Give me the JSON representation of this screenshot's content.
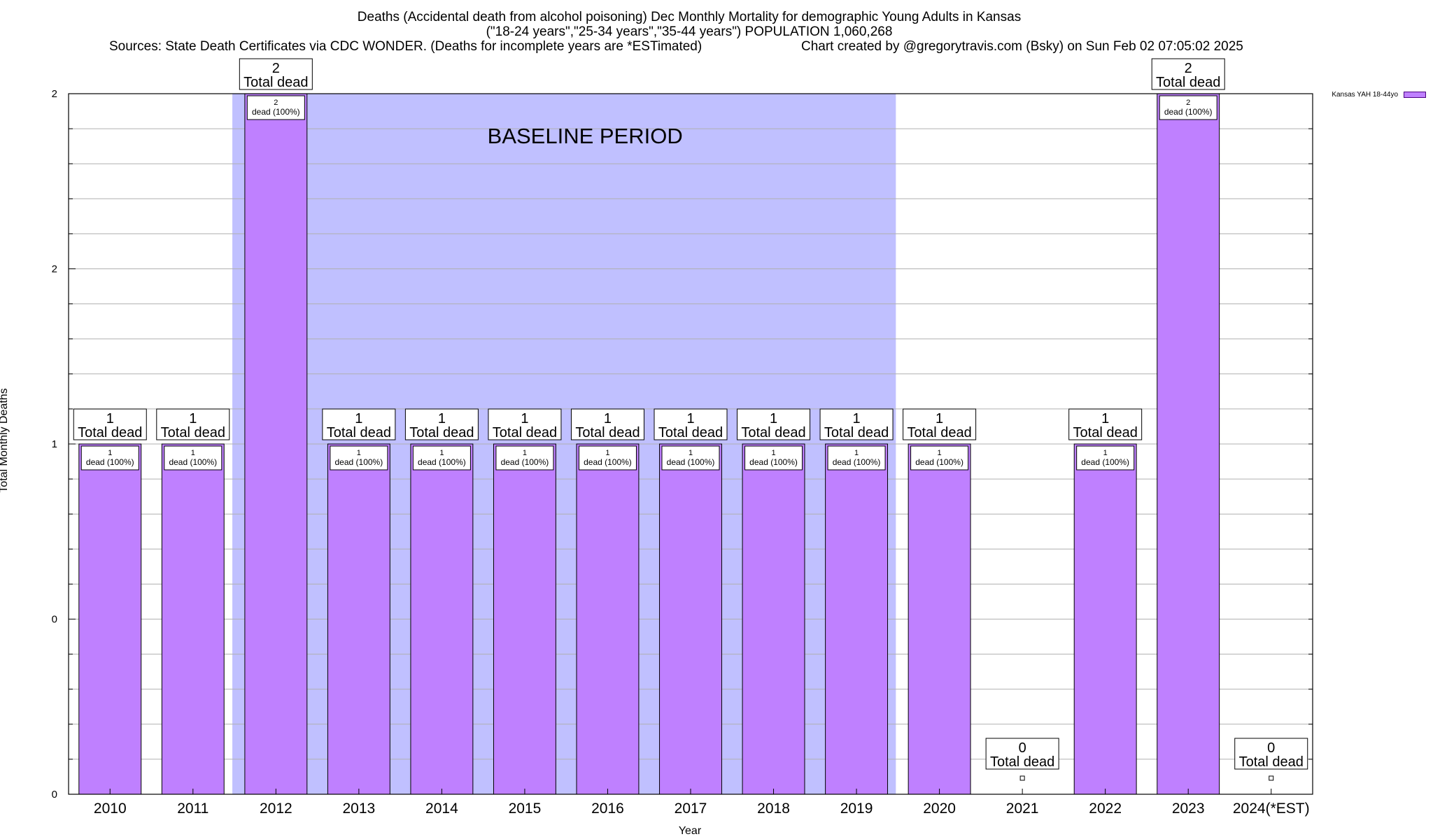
{
  "chart_data": {
    "type": "bar",
    "title": "Deaths (Accidental death from alcohol poisoning) Dec Monthly Mortality for demographic Young Adults in Kansas",
    "subtitle": "(\"18-24 years\",\"25-34 years\",\"35-44 years\") POPULATION 1,060,268",
    "source": "Sources: State Death Certificates via CDC WONDER. (Deaths for incomplete years are *ESTimated)",
    "credit": "Chart created by @gregorytravis.com (Bsky) on Sun Feb 02 07:05:02 2025",
    "xlabel": "Year",
    "ylabel": "Total Monthly Deaths",
    "categories": [
      "2010",
      "2011",
      "2012",
      "2013",
      "2014",
      "2015",
      "2016",
      "2017",
      "2018",
      "2019",
      "2020",
      "2021",
      "2022",
      "2023",
      "2024(*EST)"
    ],
    "series": [
      {
        "name": "Kansas YAH 18-44yo",
        "color": "#bf80ff",
        "values": [
          1,
          1,
          2,
          1,
          1,
          1,
          1,
          1,
          1,
          1,
          1,
          0,
          1,
          2,
          0
        ]
      }
    ],
    "bar_inner_labels": [
      "1\ndead (100%)",
      "1\ndead (100%)",
      "2\ndead (100%)",
      "1\ndead (100%)",
      "1\ndead (100%)",
      "1\ndead (100%)",
      "1\ndead (100%)",
      "1\ndead (100%)",
      "1\ndead (100%)",
      "1\ndead (100%)",
      "1\ndead (100%)",
      "",
      "1\ndead (100%)",
      "2\ndead (100%)",
      ""
    ],
    "total_labels": [
      "1\nTotal dead",
      "1\nTotal dead",
      "2\nTotal dead",
      "1\nTotal dead",
      "1\nTotal dead",
      "1\nTotal dead",
      "1\nTotal dead",
      "1\nTotal dead",
      "1\nTotal dead",
      "1\nTotal dead",
      "1\nTotal dead",
      "0\nTotal dead",
      "1\nTotal dead",
      "2\nTotal dead",
      "0\nTotal dead"
    ],
    "ylim": [
      0,
      2
    ],
    "y_ticks": [
      {
        "value": 0,
        "label": "0"
      },
      {
        "value": 0.5,
        "label": "0"
      },
      {
        "value": 1,
        "label": "1"
      },
      {
        "value": 1.5,
        "label": "2"
      },
      {
        "value": 2,
        "label": "2"
      }
    ],
    "y_minor_step": 0.1,
    "grid": true,
    "baseline": {
      "label": "BASELINE PERIOD",
      "from": "2012",
      "to": "2019",
      "color": "#c0c0ff"
    },
    "legend": {
      "position": "top-right"
    }
  }
}
